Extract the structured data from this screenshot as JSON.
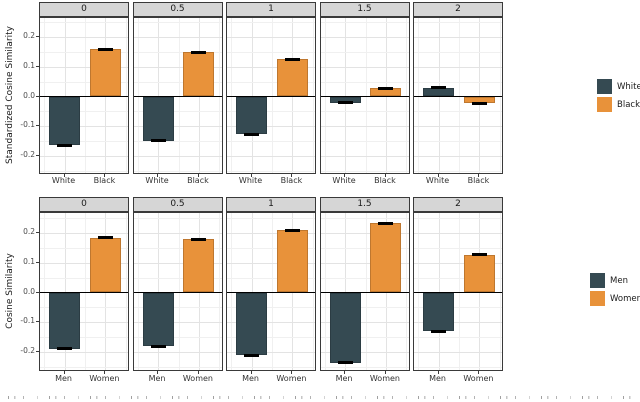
{
  "figure": {
    "colors": {
      "series1": "#354a52",
      "series2": "#e8923a",
      "strip_bg": "#d6d6d6",
      "panel_border": "#3a3a3a",
      "grid_major": "#e3e3e3",
      "grid_minor": "#f0f0f0",
      "zero_line": "#000000",
      "axis_text": "#4a4a4a",
      "text": "#1a1a1a"
    }
  },
  "chart_data": {
    "type": "bar",
    "layout_hint": "two facet rows of five panels each, grid on, legend right, error bars at bar tips, solid black zero line",
    "rows": [
      {
        "ylabel": "Standardized Cosine Similarity",
        "facet_labels": [
          "0",
          "0.5",
          "1",
          "1.5",
          "2"
        ],
        "categories": [
          "White",
          "Black"
        ],
        "series": [
          {
            "name": "White",
            "color_key": "series1",
            "values": [
              -0.164,
              -0.15,
              -0.127,
              -0.021,
              0.03
            ],
            "errors": [
              0.004,
              0.004,
              0.004,
              0.003,
              0.003
            ]
          },
          {
            "name": "Black",
            "color_key": "series2",
            "values": [
              0.159,
              0.149,
              0.126,
              0.028,
              -0.023
            ],
            "errors": [
              0.004,
              0.004,
              0.003,
              0.003,
              0.003
            ]
          }
        ],
        "yticks": [
          0.2,
          0.1,
          0.0,
          -0.1,
          -0.2
        ],
        "ytick_labels": [
          "0.2",
          "0.1",
          "0.0",
          "-0.1",
          "-0.2"
        ],
        "ylim": [
          -0.265,
          0.265
        ],
        "legend_position": "right"
      },
      {
        "ylabel": "Cosine Similarity",
        "facet_labels": [
          "0",
          "0.5",
          "1",
          "1.5",
          "2"
        ],
        "categories": [
          "Men",
          "Women"
        ],
        "series": [
          {
            "name": "Men",
            "color_key": "series1",
            "values": [
              -0.19,
              -0.182,
              -0.212,
              -0.236,
              -0.13
            ],
            "errors": [
              0.004,
              0.004,
              0.004,
              0.003,
              0.004
            ]
          },
          {
            "name": "Women",
            "color_key": "series2",
            "values": [
              0.185,
              0.18,
              0.21,
              0.233,
              0.128
            ],
            "errors": [
              0.004,
              0.003,
              0.004,
              0.004,
              0.004
            ]
          }
        ],
        "yticks": [
          0.2,
          0.1,
          0.0,
          -0.1,
          -0.2
        ],
        "ytick_labels": [
          "0.2",
          "0.1",
          "0.0",
          "-0.1",
          "-0.2"
        ],
        "ylim": [
          -0.268,
          0.268
        ],
        "legend_position": "right"
      }
    ]
  }
}
